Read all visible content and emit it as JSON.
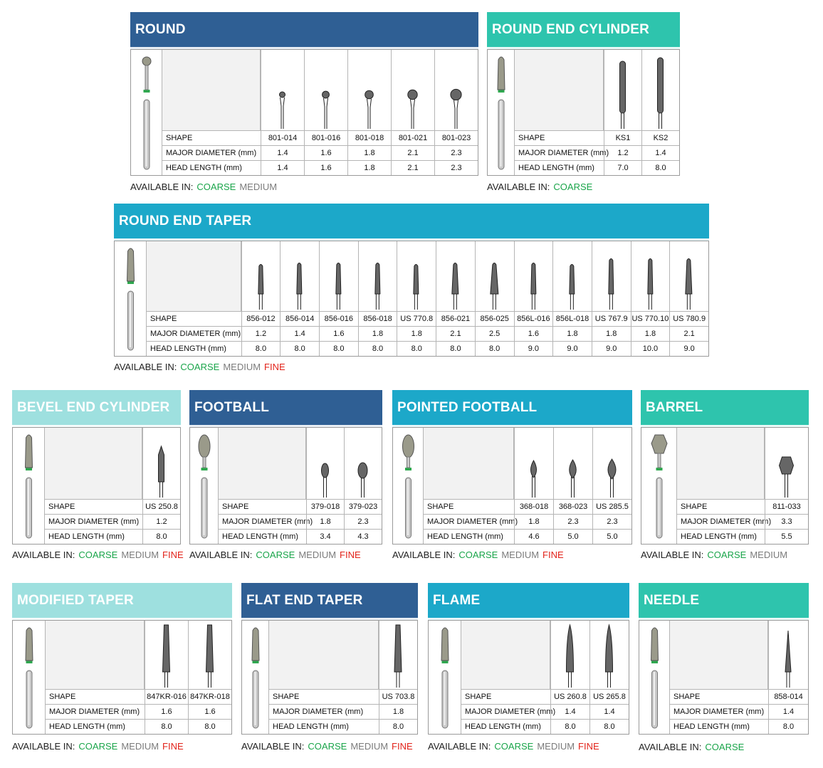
{
  "labels": {
    "shape": "SHAPE",
    "major": "MAJOR DIAMETER (mm)",
    "head": "HEAD LENGTH (mm)",
    "available": "AVAILABLE IN:"
  },
  "grit": {
    "coarse": "COARSE",
    "medium": "MEDIUM",
    "fine": "FINE"
  },
  "colors": {
    "darkblue": "#2f5f94",
    "teal": "#2ec4ad",
    "cyan": "#1ca8c9",
    "lightteal": "#9ee0df",
    "coarse": "#1aa54a",
    "medium": "#7b7b7b",
    "fine": "#e2231a"
  },
  "cards": [
    {
      "title": "ROUND",
      "color": "darkblue",
      "grits": [
        "coarse",
        "medium"
      ],
      "icon": "round-bur-icon",
      "shapes": [
        "801-014",
        "801-016",
        "801-018",
        "801-021",
        "801-023"
      ],
      "major": [
        "1.4",
        "1.6",
        "1.8",
        "2.1",
        "2.3"
      ],
      "head": [
        "1.4",
        "1.6",
        "1.8",
        "2.1",
        "2.3"
      ]
    },
    {
      "title": "ROUND END CYLINDER",
      "color": "teal",
      "grits": [
        "coarse"
      ],
      "icon": "round-end-cylinder-bur-icon",
      "shapes": [
        "KS1",
        "KS2"
      ],
      "major": [
        "1.2",
        "1.4"
      ],
      "head": [
        "7.0",
        "8.0"
      ]
    },
    {
      "title": "ROUND END TAPER",
      "color": "cyan",
      "grits": [
        "coarse",
        "medium",
        "fine"
      ],
      "icon": "round-end-taper-bur-icon",
      "shapes": [
        "856-012",
        "856-014",
        "856-016",
        "856-018",
        "US 770.8",
        "856-021",
        "856-025",
        "856L-016",
        "856L-018",
        "US 767.9",
        "US 770.10",
        "US 780.9"
      ],
      "major": [
        "1.2",
        "1.4",
        "1.6",
        "1.8",
        "1.8",
        "2.1",
        "2.5",
        "1.6",
        "1.8",
        "1.8",
        "1.8",
        "2.1"
      ],
      "head": [
        "8.0",
        "8.0",
        "8.0",
        "8.0",
        "8.0",
        "8.0",
        "8.0",
        "9.0",
        "9.0",
        "9.0",
        "10.0",
        "9.0"
      ]
    },
    {
      "title": "BEVEL END CYLINDER",
      "color": "lightteal",
      "grits": [
        "coarse",
        "medium",
        "fine"
      ],
      "icon": "bevel-end-cylinder-bur-icon",
      "shapes": [
        "US 250.8"
      ],
      "major": [
        "1.2"
      ],
      "head": [
        "8.0"
      ]
    },
    {
      "title": "FOOTBALL",
      "color": "darkblue",
      "grits": [
        "coarse",
        "medium",
        "fine"
      ],
      "icon": "football-bur-icon",
      "shapes": [
        "379-018",
        "379-023"
      ],
      "major": [
        "1.8",
        "2.3"
      ],
      "head": [
        "3.4",
        "4.3"
      ]
    },
    {
      "title": "POINTED FOOTBALL",
      "color": "cyan",
      "grits": [
        "coarse",
        "medium",
        "fine"
      ],
      "icon": "pointed-football-bur-icon",
      "shapes": [
        "368-018",
        "368-023",
        "US 285.5"
      ],
      "major": [
        "1.8",
        "2.3",
        "2.3"
      ],
      "head": [
        "4.6",
        "5.0",
        "5.0"
      ]
    },
    {
      "title": "BARREL",
      "color": "teal",
      "grits": [
        "coarse",
        "medium"
      ],
      "icon": "barrel-bur-icon",
      "shapes": [
        "811-033"
      ],
      "major": [
        "3.3"
      ],
      "head": [
        "5.5"
      ]
    },
    {
      "title": "MODIFIED TAPER",
      "color": "lightteal",
      "grits": [
        "coarse",
        "medium",
        "fine"
      ],
      "icon": "modified-taper-bur-icon",
      "shapes": [
        "847KR-016",
        "847KR-018"
      ],
      "major": [
        "1.6",
        "1.6"
      ],
      "head": [
        "8.0",
        "8.0"
      ]
    },
    {
      "title": "FLAT END TAPER",
      "color": "darkblue",
      "grits": [
        "coarse",
        "medium",
        "fine"
      ],
      "icon": "flat-end-taper-bur-icon",
      "shapes": [
        "US 703.8"
      ],
      "major": [
        "1.8"
      ],
      "head": [
        "8.0"
      ]
    },
    {
      "title": "FLAME",
      "color": "cyan",
      "grits": [
        "coarse",
        "medium",
        "fine"
      ],
      "icon": "flame-bur-icon",
      "shapes": [
        "US 260.8",
        "US 265.8"
      ],
      "major": [
        "1.4",
        "1.4"
      ],
      "head": [
        "8.0",
        "8.0"
      ]
    },
    {
      "title": "NEEDLE",
      "color": "teal",
      "grits": [
        "coarse"
      ],
      "icon": "needle-bur-icon",
      "shapes": [
        "858-014"
      ],
      "major": [
        "1.4"
      ],
      "head": [
        "8.0"
      ]
    }
  ]
}
